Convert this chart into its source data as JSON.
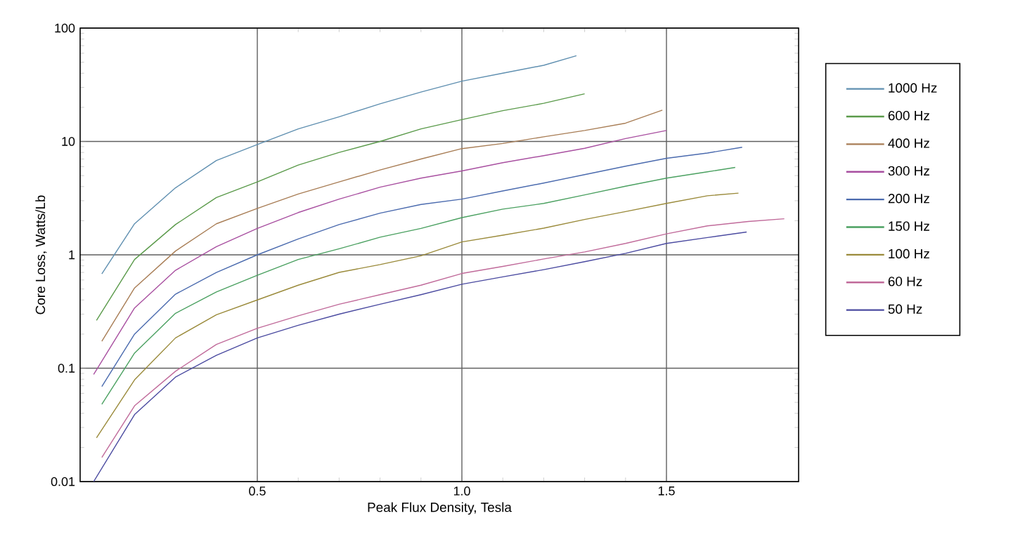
{
  "chart_data": {
    "type": "line",
    "xlabel": "Peak Flux Density, Tesla",
    "ylabel": "Core Loss, Watts/Lb",
    "log": "y",
    "grid": true,
    "legend": "right",
    "line_style": "solid",
    "xlim": [
      0.067,
      1.823
    ],
    "ylim": [
      0.01,
      100
    ],
    "xticks": [
      0.5,
      {
        "value": 1,
        "label": "1.0"
      },
      1.5
    ],
    "yticks": [
      0.01,
      0.1,
      1,
      10,
      100
    ],
    "series": [
      {
        "name": "1000 Hz",
        "color": "#5f8fb0",
        "x": [
          0.12,
          0.2,
          0.3,
          0.4,
          0.5,
          0.6,
          0.7,
          0.8,
          0.9,
          1.0,
          1.1,
          1.2,
          1.28
        ],
        "values": [
          0.68,
          1.88,
          3.9,
          6.8,
          9.4,
          12.9,
          16.5,
          21.5,
          27.3,
          34,
          40,
          47,
          57
        ]
      },
      {
        "name": "600 Hz",
        "color": "#5a9a4a",
        "x": [
          0.107,
          0.2,
          0.3,
          0.4,
          0.5,
          0.6,
          0.7,
          0.8,
          0.9,
          1.0,
          1.1,
          1.2,
          1.3
        ],
        "values": [
          0.264,
          0.91,
          1.85,
          3.2,
          4.4,
          6.2,
          8.0,
          10,
          12.9,
          15.6,
          18.7,
          21.7,
          26.3
        ]
      },
      {
        "name": "400 Hz",
        "color": "#a87d55",
        "x": [
          0.12,
          0.2,
          0.3,
          0.4,
          0.5,
          0.6,
          0.7,
          0.8,
          0.9,
          1.0,
          1.1,
          1.2,
          1.3,
          1.4,
          1.49
        ],
        "values": [
          0.173,
          0.51,
          1.08,
          1.88,
          2.57,
          3.44,
          4.4,
          5.6,
          7.0,
          8.65,
          9.6,
          11.0,
          12.5,
          14.5,
          18.9
        ]
      },
      {
        "name": "300 Hz",
        "color": "#a84fa0",
        "x": [
          0.1,
          0.2,
          0.3,
          0.4,
          0.5,
          0.6,
          0.7,
          0.8,
          0.9,
          1.0,
          1.1,
          1.2,
          1.3,
          1.4,
          1.5
        ],
        "values": [
          0.088,
          0.34,
          0.73,
          1.18,
          1.71,
          2.36,
          3.1,
          3.95,
          4.75,
          5.5,
          6.5,
          7.5,
          8.7,
          10.6,
          12.5
        ]
      },
      {
        "name": "200 Hz",
        "color": "#4a6aae",
        "x": [
          0.12,
          0.2,
          0.3,
          0.4,
          0.5,
          0.6,
          0.7,
          0.8,
          0.9,
          1.0,
          1.1,
          1.2,
          1.3,
          1.4,
          1.5,
          1.6,
          1.685
        ],
        "values": [
          0.069,
          0.2,
          0.45,
          0.7,
          1.0,
          1.38,
          1.85,
          2.33,
          2.78,
          3.1,
          3.66,
          4.3,
          5.1,
          6.05,
          7.1,
          7.9,
          8.9
        ]
      },
      {
        "name": "150 Hz",
        "color": "#4aa060",
        "x": [
          0.12,
          0.2,
          0.3,
          0.4,
          0.5,
          0.6,
          0.7,
          0.8,
          0.9,
          1.0,
          1.1,
          1.2,
          1.3,
          1.4,
          1.5,
          1.6,
          1.668
        ],
        "values": [
          0.048,
          0.136,
          0.305,
          0.47,
          0.66,
          0.91,
          1.13,
          1.43,
          1.71,
          2.13,
          2.53,
          2.84,
          3.38,
          4.03,
          4.75,
          5.4,
          5.9
        ]
      },
      {
        "name": "100 Hz",
        "color": "#9a8a3a",
        "x": [
          0.107,
          0.2,
          0.3,
          0.4,
          0.5,
          0.6,
          0.7,
          0.8,
          0.9,
          1.0,
          1.1,
          1.2,
          1.3,
          1.4,
          1.5,
          1.6,
          1.676
        ],
        "values": [
          0.0243,
          0.079,
          0.185,
          0.296,
          0.4,
          0.54,
          0.7,
          0.82,
          0.98,
          1.3,
          1.49,
          1.72,
          2.05,
          2.41,
          2.84,
          3.32,
          3.5
        ]
      },
      {
        "name": "60 Hz",
        "color": "#c06a9a",
        "x": [
          0.12,
          0.2,
          0.3,
          0.4,
          0.5,
          0.6,
          0.7,
          0.8,
          0.9,
          1.0,
          1.1,
          1.2,
          1.3,
          1.4,
          1.5,
          1.6,
          1.7,
          1.788
        ],
        "values": [
          0.0163,
          0.0466,
          0.094,
          0.162,
          0.225,
          0.29,
          0.367,
          0.445,
          0.54,
          0.685,
          0.79,
          0.92,
          1.06,
          1.26,
          1.53,
          1.8,
          1.97,
          2.08
        ]
      },
      {
        "name": "50 Hz",
        "color": "#4a4aa0",
        "x": [
          0.1,
          0.2,
          0.3,
          0.4,
          0.5,
          0.6,
          0.7,
          0.8,
          0.9,
          1.0,
          1.1,
          1.2,
          1.3,
          1.4,
          1.5,
          1.6,
          1.696
        ],
        "values": [
          0.01,
          0.039,
          0.0835,
          0.13,
          0.185,
          0.239,
          0.3,
          0.367,
          0.445,
          0.55,
          0.64,
          0.74,
          0.87,
          1.03,
          1.26,
          1.42,
          1.59
        ]
      }
    ]
  }
}
